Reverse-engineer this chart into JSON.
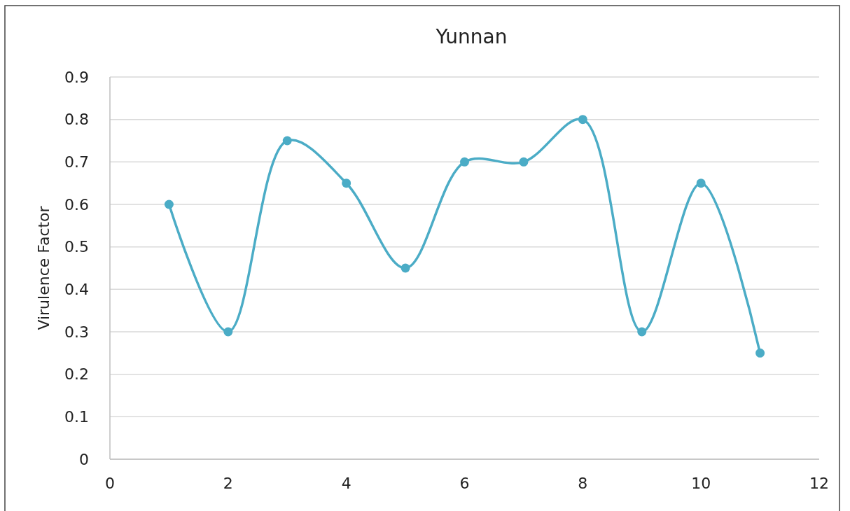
{
  "chart_data": {
    "type": "line",
    "title": "Yunnan",
    "ylabel": "Virulence Factor",
    "x": [
      1,
      2,
      3,
      4,
      5,
      6,
      7,
      8,
      9,
      10,
      11
    ],
    "series": [
      {
        "color": "#4bacc6",
        "values": [
          0.6,
          0.3,
          0.75,
          0.65,
          0.45,
          0.7,
          0.7,
          0.8,
          0.3,
          0.65,
          0.25
        ]
      }
    ],
    "xlim": [
      0,
      12
    ],
    "xticks": [
      0,
      2,
      4,
      6,
      8,
      10,
      12
    ],
    "ylim": [
      0,
      0.9
    ],
    "yticks": [
      0,
      0.1,
      0.2,
      0.3,
      0.4,
      0.5,
      0.6,
      0.7,
      0.8,
      0.9
    ],
    "grid": "y",
    "marker": "circle",
    "line_style": "solid"
  }
}
